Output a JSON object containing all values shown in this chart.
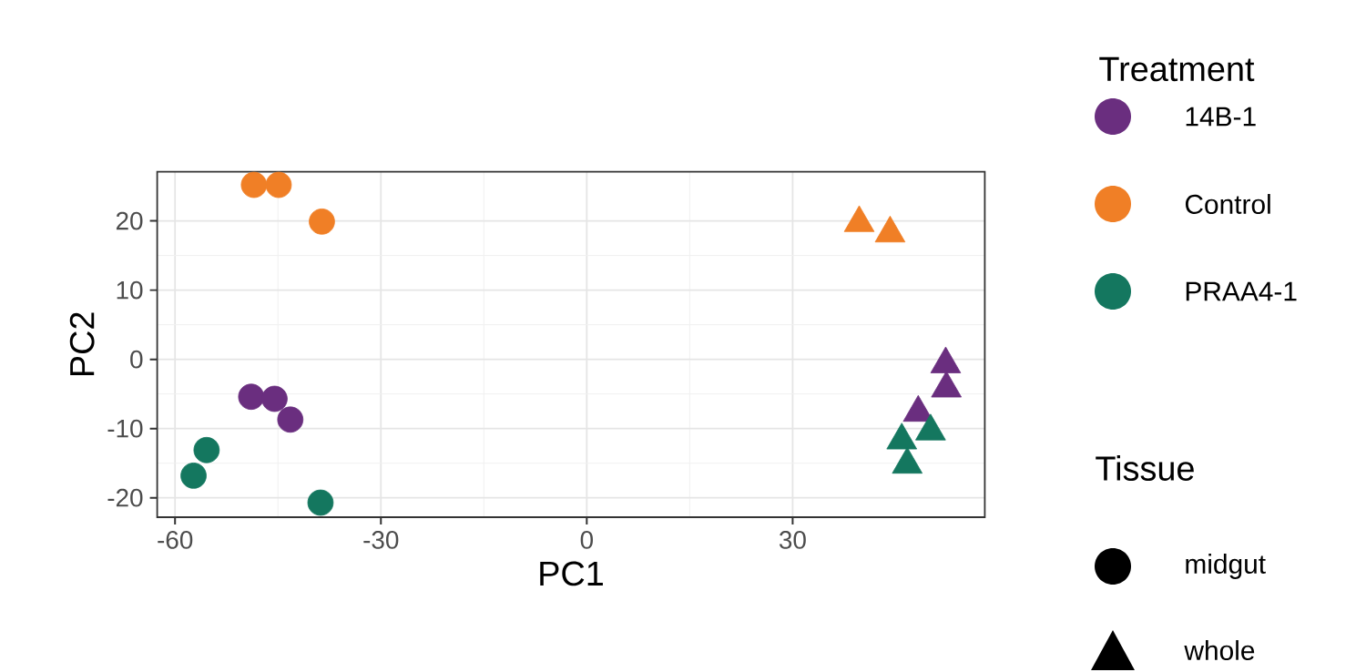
{
  "chart_data": {
    "type": "scatter",
    "xlabel": "PC1",
    "ylabel": "PC2",
    "legend_title": "Treatment",
    "legend": "right",
    "grid": true,
    "xlim": [
      -62.6,
      58
    ],
    "ylim": [
      -22.8,
      27.1
    ],
    "xticks": [
      -60,
      -30,
      0,
      30
    ],
    "yticks": [
      -20,
      -10,
      0,
      10,
      20
    ],
    "annotations": [
      "Tissue",
      "midgut",
      "whole"
    ],
    "series": [
      {
        "name": "14B-1",
        "color": "#6a2e7f",
        "marker": "circle",
        "x": [
          -48.9,
          -45.5,
          -43.2
        ],
        "values": [
          -5.4,
          -5.7,
          -8.7
        ]
      },
      {
        "name": "Control",
        "color": "#f07f26",
        "marker": "circle",
        "x": [
          -48.5,
          -44.9,
          -38.6
        ],
        "values": [
          25.2,
          25.2,
          19.9
        ]
      },
      {
        "name": "PRAA4-1",
        "color": "#14775f",
        "marker": "circle",
        "x": [
          -55.4,
          -57.3,
          -38.8
        ],
        "values": [
          -13.1,
          -16.8,
          -20.7
        ]
      },
      {
        "color": "#6a2e7f",
        "marker": "triangle",
        "x": [
          52.3,
          52.4,
          48.3
        ],
        "values": [
          -0.7,
          -4.2,
          -7.7
        ]
      },
      {
        "color": "#f07f26",
        "marker": "triangle",
        "x": [
          39.7,
          44.2
        ],
        "values": [
          19.7,
          18.2
        ]
      },
      {
        "color": "#14775f",
        "marker": "triangle",
        "x": [
          50.1,
          45.9,
          46.7
        ],
        "values": [
          -10.4,
          -11.7,
          -15.2
        ]
      }
    ]
  }
}
